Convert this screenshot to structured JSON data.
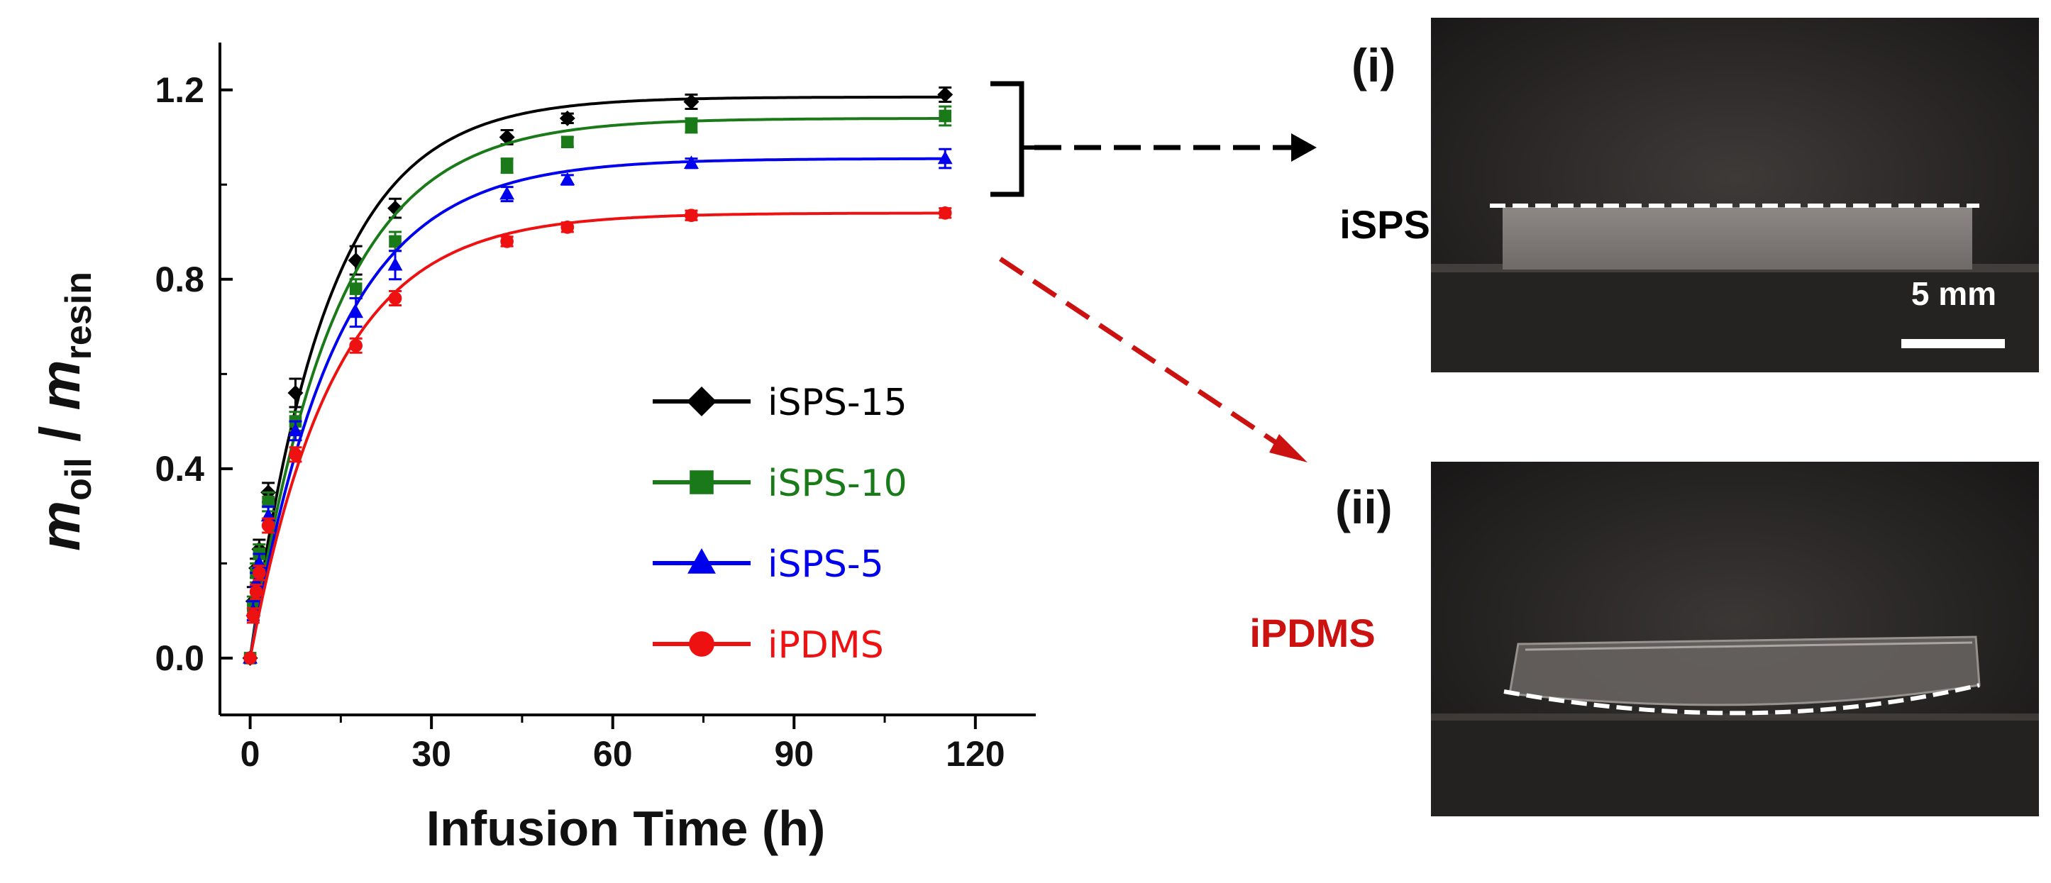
{
  "chart_data": {
    "type": "line",
    "xlabel": "Infusion Time (h)",
    "ylabel": {
      "m1": "m",
      "s1": "oil",
      "sep": " / ",
      "m2": "m",
      "s2": "resin"
    },
    "xlim": [
      -5,
      130
    ],
    "ylim": [
      -0.12,
      1.3
    ],
    "xticks": [
      0,
      30,
      60,
      90,
      120
    ],
    "yticks": [
      0.0,
      0.4,
      0.8,
      1.2
    ],
    "xtick_labels": [
      "0",
      "30",
      "60",
      "90",
      "120"
    ],
    "ytick_labels": [
      "0.0",
      "0.4",
      "0.8",
      "1.2"
    ],
    "grid": false,
    "legend_position": "center-right",
    "series": [
      {
        "name": "iSPS-15",
        "color": "#000000",
        "marker": "diamond",
        "x": [
          0,
          0.5,
          1,
          1.5,
          3,
          7.5,
          17.5,
          24,
          42.5,
          52.5,
          73,
          115
        ],
        "y": [
          0.0,
          0.12,
          0.19,
          0.23,
          0.35,
          0.56,
          0.84,
          0.95,
          1.1,
          1.14,
          1.175,
          1.19
        ],
        "err": [
          0,
          0.03,
          0.02,
          0.02,
          0.02,
          0.03,
          0.03,
          0.02,
          0.015,
          0.01,
          0.015,
          0.015
        ],
        "fit": [
          1.185,
          0.078
        ]
      },
      {
        "name": "iSPS-10",
        "color": "#1a7a1a",
        "marker": "square",
        "x": [
          0,
          0.5,
          1,
          1.5,
          3,
          7.5,
          17.5,
          24,
          42.5,
          52.5,
          73,
          115
        ],
        "y": [
          0.0,
          0.11,
          0.18,
          0.22,
          0.33,
          0.5,
          0.78,
          0.88,
          1.04,
          1.09,
          1.125,
          1.145
        ],
        "err": [
          0,
          0.02,
          0.02,
          0.02,
          0.02,
          0.02,
          0.02,
          0.02,
          0.015,
          0.01,
          0.015,
          0.02
        ],
        "fit": [
          1.14,
          0.072
        ]
      },
      {
        "name": "iSPS-5",
        "color": "#0000ee",
        "marker": "triangle",
        "x": [
          0,
          0.5,
          1,
          1.5,
          3,
          7.5,
          17.5,
          24,
          42.5,
          52.5,
          73,
          115
        ],
        "y": [
          0.0,
          0.1,
          0.16,
          0.2,
          0.3,
          0.48,
          0.73,
          0.83,
          0.98,
          1.01,
          1.045,
          1.055
        ],
        "err": [
          0,
          0.02,
          0.02,
          0.02,
          0.02,
          0.02,
          0.03,
          0.03,
          0.015,
          0.01,
          0.01,
          0.02
        ],
        "fit": [
          1.055,
          0.07
        ]
      },
      {
        "name": "iPDMS",
        "color": "#ee1111",
        "marker": "circle",
        "x": [
          0,
          0.5,
          1,
          1.5,
          3,
          7.5,
          17.5,
          24,
          42.5,
          52.5,
          73,
          115
        ],
        "y": [
          0.0,
          0.09,
          0.14,
          0.18,
          0.28,
          0.43,
          0.66,
          0.76,
          0.88,
          0.91,
          0.935,
          0.94
        ],
        "err": [
          0,
          0.015,
          0.015,
          0.015,
          0.015,
          0.015,
          0.015,
          0.015,
          0.01,
          0.01,
          0.01,
          0.01
        ],
        "fit": [
          0.94,
          0.072
        ]
      }
    ]
  },
  "panels": {
    "top_label": "(i)",
    "top_sample": "iSPS",
    "bottom_label": "(ii)",
    "bottom_sample": "iPDMS",
    "scale_bar": "5 mm",
    "sample_colors": {
      "top": "#000000",
      "bottom": "#cc1111"
    }
  }
}
